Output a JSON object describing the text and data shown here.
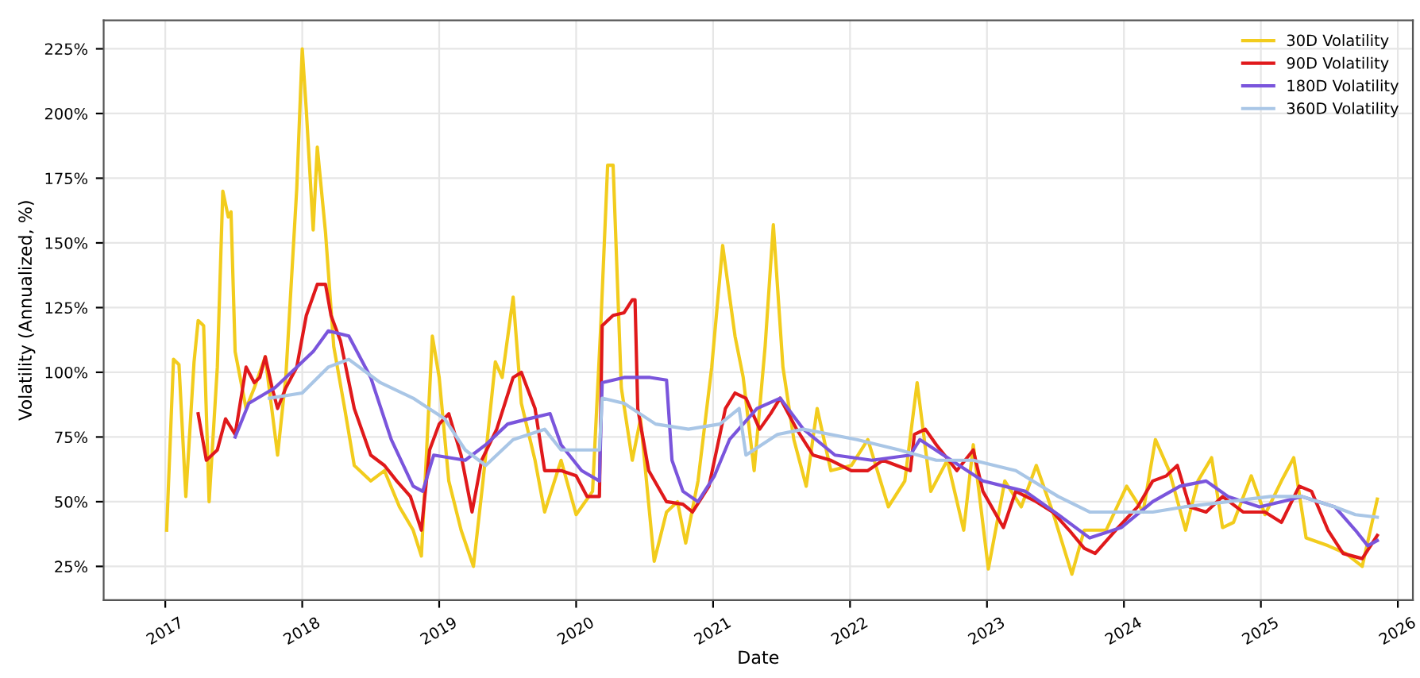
{
  "chart_data": {
    "type": "line",
    "xlabel": "Date",
    "ylabel": "Volatility (Annualized, %)",
    "grid": true,
    "legend": "top right",
    "line_style": "solid",
    "marker": "none",
    "xlim": [
      2016.55,
      2026.11
    ],
    "xticks": [
      2017,
      2018,
      2019,
      2020,
      2021,
      2022,
      2023,
      2024,
      2025,
      2026
    ],
    "ylim": [
      12,
      236
    ],
    "yticks": [
      {
        "value": 25,
        "label": "25%"
      },
      {
        "value": 50,
        "label": "50%"
      },
      {
        "value": 75,
        "label": "75%"
      },
      {
        "value": 100,
        "label": "100%"
      },
      {
        "value": 125,
        "label": "125%"
      },
      {
        "value": 150,
        "label": "150%"
      },
      {
        "value": 175,
        "label": "175%"
      },
      {
        "value": 200,
        "label": "200%"
      },
      {
        "value": 225,
        "label": "225%"
      }
    ],
    "series": [
      {
        "name": "30D Volatility",
        "color": "#f2cc1d",
        "x": [
          2017.01,
          2017.06,
          2017.1,
          2017.15,
          2017.21,
          2017.24,
          2017.28,
          2017.32,
          2017.38,
          2017.42,
          2017.46,
          2017.48,
          2017.51,
          2017.59,
          2017.65,
          2017.73,
          2017.82,
          2017.88,
          2017.96,
          2018.0,
          2018.03,
          2018.08,
          2018.11,
          2018.17,
          2018.23,
          2018.31,
          2018.38,
          2018.5,
          2018.6,
          2018.71,
          2018.81,
          2018.87,
          2018.95,
          2019.0,
          2019.07,
          2019.16,
          2019.25,
          2019.32,
          2019.41,
          2019.46,
          2019.54,
          2019.6,
          2019.7,
          2019.77,
          2019.89,
          2020.0,
          2020.12,
          2020.18,
          2020.23,
          2020.27,
          2020.33,
          2020.41,
          2020.47,
          2020.57,
          2020.66,
          2020.74,
          2020.8,
          2020.89,
          2020.99,
          2021.07,
          2021.16,
          2021.22,
          2021.3,
          2021.38,
          2021.44,
          2021.51,
          2021.59,
          2021.68,
          2021.76,
          2021.86,
          2022.01,
          2022.13,
          2022.28,
          2022.4,
          2022.49,
          2022.59,
          2022.71,
          2022.83,
          2022.9,
          2023.01,
          2023.13,
          2023.25,
          2023.36,
          2023.48,
          2023.62,
          2023.71,
          2023.87,
          2024.02,
          2024.14,
          2024.23,
          2024.33,
          2024.45,
          2024.54,
          2024.64,
          2024.72,
          2024.8,
          2024.93,
          2025.03,
          2025.15,
          2025.24,
          2025.33,
          2025.49,
          2025.62,
          2025.74,
          2025.85
        ],
        "values": [
          39,
          105,
          103,
          52,
          104,
          120,
          118,
          50,
          102,
          170,
          160,
          162,
          108,
          86,
          94,
          106,
          68,
          98,
          171,
          225,
          201,
          155,
          187,
          154,
          110,
          86,
          64,
          58,
          62,
          48,
          39,
          29,
          114,
          98,
          58,
          39,
          25,
          58,
          104,
          98,
          129,
          88,
          66,
          46,
          66,
          45,
          54,
          118,
          180,
          180,
          94,
          66,
          82,
          27,
          46,
          50,
          34,
          58,
          102,
          149,
          114,
          98,
          62,
          110,
          157,
          102,
          74,
          56,
          86,
          62,
          64,
          74,
          48,
          58,
          96,
          54,
          66,
          39,
          72,
          24,
          58,
          48,
          64,
          46,
          22,
          39,
          39,
          56,
          46,
          74,
          62,
          39,
          58,
          67,
          40,
          42,
          60,
          45,
          58,
          67,
          36,
          33,
          30,
          25,
          51
        ]
      },
      {
        "name": "90D Volatility",
        "color": "#e0191b",
        "x": [
          2017.24,
          2017.3,
          2017.38,
          2017.44,
          2017.51,
          2017.59,
          2017.65,
          2017.69,
          2017.73,
          2017.78,
          2017.82,
          2017.88,
          2017.96,
          2018.03,
          2018.11,
          2018.17,
          2018.21,
          2018.28,
          2018.38,
          2018.5,
          2018.6,
          2018.69,
          2018.79,
          2018.87,
          2018.93,
          2019.0,
          2019.07,
          2019.16,
          2019.24,
          2019.31,
          2019.42,
          2019.54,
          2019.6,
          2019.7,
          2019.77,
          2019.89,
          2020.0,
          2020.08,
          2020.17,
          2020.19,
          2020.27,
          2020.35,
          2020.41,
          2020.43,
          2020.45,
          2020.53,
          2020.66,
          2020.78,
          2020.85,
          2020.97,
          2021.09,
          2021.16,
          2021.24,
          2021.34,
          2021.42,
          2021.49,
          2021.61,
          2021.73,
          2021.86,
          2022.01,
          2022.13,
          2022.24,
          2022.44,
          2022.47,
          2022.55,
          2022.63,
          2022.78,
          2022.9,
          2022.97,
          2023.12,
          2023.21,
          2023.36,
          2023.48,
          2023.6,
          2023.71,
          2023.79,
          2023.94,
          2024.1,
          2024.21,
          2024.31,
          2024.39,
          2024.48,
          2024.6,
          2024.72,
          2024.87,
          2025.03,
          2025.15,
          2025.28,
          2025.37,
          2025.49,
          2025.6,
          2025.74,
          2025.85
        ],
        "values": [
          84,
          66,
          70,
          82,
          76,
          102,
          96,
          98,
          106,
          94,
          86,
          94,
          102,
          122,
          134,
          134,
          122,
          112,
          86,
          68,
          64,
          58,
          52,
          39,
          70,
          80,
          84,
          68,
          46,
          66,
          78,
          98,
          100,
          86,
          62,
          62,
          60,
          52,
          52,
          118,
          122,
          123,
          128,
          128,
          86,
          62,
          50,
          49,
          46,
          56,
          86,
          92,
          90,
          78,
          84,
          90,
          78,
          68,
          66,
          62,
          62,
          66,
          62,
          76,
          78,
          72,
          62,
          70,
          54,
          40,
          54,
          50,
          46,
          39,
          32,
          30,
          39,
          48,
          58,
          60,
          64,
          48,
          46,
          52,
          46,
          46,
          42,
          56,
          54,
          39,
          30,
          28,
          37
        ]
      },
      {
        "name": "180D Volatility",
        "color": "#7a55dc",
        "x": [
          2017.51,
          2017.61,
          2017.8,
          2017.96,
          2018.08,
          2018.19,
          2018.34,
          2018.5,
          2018.65,
          2018.81,
          2018.88,
          2018.96,
          2019.19,
          2019.34,
          2019.5,
          2019.65,
          2019.81,
          2019.89,
          2020.04,
          2020.17,
          2020.19,
          2020.35,
          2020.54,
          2020.66,
          2020.7,
          2020.78,
          2020.89,
          2021.01,
          2021.12,
          2021.32,
          2021.49,
          2021.66,
          2021.89,
          2022.16,
          2022.44,
          2022.51,
          2022.74,
          2022.97,
          2023.28,
          2023.52,
          2023.75,
          2023.98,
          2024.21,
          2024.41,
          2024.6,
          2024.76,
          2024.99,
          2025.15,
          2025.3,
          2025.54,
          2025.69,
          2025.78,
          2025.85
        ],
        "values": [
          75,
          88,
          94,
          102,
          108,
          116,
          114,
          98,
          74,
          56,
          54,
          68,
          66,
          72,
          80,
          82,
          84,
          72,
          62,
          58,
          96,
          98,
          98,
          97,
          66,
          54,
          50,
          60,
          74,
          86,
          90,
          78,
          68,
          66,
          68,
          74,
          66,
          58,
          54,
          45,
          36,
          40,
          50,
          56,
          58,
          52,
          48,
          50,
          52,
          48,
          39,
          33,
          35
        ]
      },
      {
        "name": "360D Volatility",
        "color": "#a9c6e6",
        "x": [
          2017.76,
          2018.0,
          2018.19,
          2018.34,
          2018.57,
          2018.81,
          2019.04,
          2019.19,
          2019.34,
          2019.54,
          2019.77,
          2019.89,
          2020.17,
          2020.19,
          2020.35,
          2020.58,
          2020.82,
          2021.05,
          2021.19,
          2021.24,
          2021.47,
          2021.66,
          2022.05,
          2022.36,
          2022.63,
          2022.9,
          2023.21,
          2023.52,
          2023.75,
          2023.98,
          2024.21,
          2024.44,
          2024.76,
          2025.07,
          2025.3,
          2025.54,
          2025.69,
          2025.85
        ],
        "values": [
          90,
          92,
          102,
          105,
          96,
          90,
          82,
          70,
          64,
          74,
          78,
          70,
          70,
          90,
          88,
          80,
          78,
          80,
          86,
          68,
          76,
          78,
          74,
          70,
          66,
          66,
          62,
          52,
          46,
          46,
          46,
          48,
          50,
          52,
          52,
          48,
          45,
          44
        ]
      }
    ]
  }
}
